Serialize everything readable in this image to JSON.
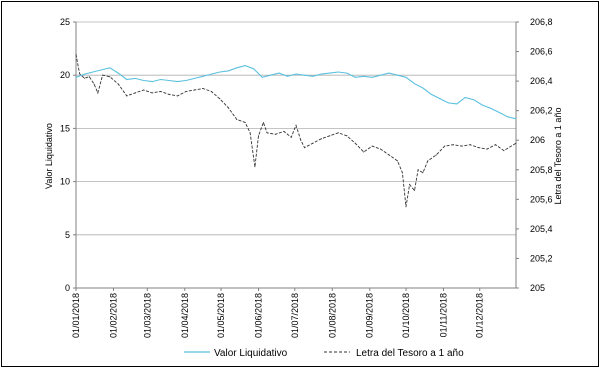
{
  "chart_data": {
    "type": "line",
    "title": "",
    "xlabel": "",
    "ylabel_left": "Valor Liquidativo",
    "ylabel_right": "Letra del Tesoro a 1 año",
    "ylim_left": [
      0,
      25
    ],
    "ylim_right": [
      205,
      206.8
    ],
    "yticks_left": [
      "0",
      "5",
      "10",
      "15",
      "20",
      "25"
    ],
    "yticks_right": [
      "205",
      "205,2",
      "205,4",
      "205,6",
      "205,8",
      "206",
      "206,2",
      "206,4",
      "206,6",
      "206,8"
    ],
    "x_ticks": [
      "01/01/2018",
      "01/02/2018",
      "01/03/2018",
      "01/04/2018",
      "01/05/2018",
      "01/06/2018",
      "01/07/2018",
      "01/08/2018",
      "01/09/2018",
      "01/10/2018",
      "01/11/2018",
      "01/12/2018"
    ],
    "x_range": [
      "2018-01-01",
      "2018-12-31"
    ],
    "grid": "horizontal",
    "legend_position": "bottom",
    "series": [
      {
        "name": "Valor Liquidativo",
        "axis": "left",
        "color": "#5bc0de",
        "style": "solid",
        "points": [
          [
            "2018-01-01",
            19.8
          ],
          [
            "2018-01-08",
            20.1
          ],
          [
            "2018-01-15",
            20.3
          ],
          [
            "2018-01-22",
            20.5
          ],
          [
            "2018-01-29",
            20.7
          ],
          [
            "2018-02-05",
            20.2
          ],
          [
            "2018-02-12",
            19.6
          ],
          [
            "2018-02-19",
            19.7
          ],
          [
            "2018-02-26",
            19.5
          ],
          [
            "2018-03-05",
            19.4
          ],
          [
            "2018-03-12",
            19.6
          ],
          [
            "2018-03-19",
            19.5
          ],
          [
            "2018-03-26",
            19.4
          ],
          [
            "2018-04-02",
            19.5
          ],
          [
            "2018-04-09",
            19.7
          ],
          [
            "2018-04-16",
            19.9
          ],
          [
            "2018-04-23",
            20.1
          ],
          [
            "2018-04-30",
            20.3
          ],
          [
            "2018-05-07",
            20.4
          ],
          [
            "2018-05-14",
            20.7
          ],
          [
            "2018-05-21",
            20.9
          ],
          [
            "2018-05-28",
            20.6
          ],
          [
            "2018-06-04",
            19.8
          ],
          [
            "2018-06-11",
            20.0
          ],
          [
            "2018-06-18",
            20.2
          ],
          [
            "2018-06-25",
            19.9
          ],
          [
            "2018-07-02",
            20.1
          ],
          [
            "2018-07-09",
            20.0
          ],
          [
            "2018-07-16",
            19.9
          ],
          [
            "2018-07-23",
            20.1
          ],
          [
            "2018-07-30",
            20.2
          ],
          [
            "2018-08-06",
            20.3
          ],
          [
            "2018-08-13",
            20.2
          ],
          [
            "2018-08-20",
            19.8
          ],
          [
            "2018-08-27",
            19.9
          ],
          [
            "2018-09-03",
            19.8
          ],
          [
            "2018-09-10",
            20.0
          ],
          [
            "2018-09-17",
            20.2
          ],
          [
            "2018-09-24",
            20.0
          ],
          [
            "2018-10-01",
            19.8
          ],
          [
            "2018-10-08",
            19.2
          ],
          [
            "2018-10-15",
            18.8
          ],
          [
            "2018-10-22",
            18.2
          ],
          [
            "2018-10-29",
            17.8
          ],
          [
            "2018-11-05",
            17.4
          ],
          [
            "2018-11-12",
            17.3
          ],
          [
            "2018-11-19",
            17.9
          ],
          [
            "2018-11-26",
            17.7
          ],
          [
            "2018-12-03",
            17.2
          ],
          [
            "2018-12-10",
            16.9
          ],
          [
            "2018-12-17",
            16.5
          ],
          [
            "2018-12-24",
            16.1
          ],
          [
            "2018-12-31",
            15.9
          ]
        ]
      },
      {
        "name": "Letra del Tesoro a 1 año",
        "axis": "right",
        "color": "#333333",
        "style": "dashed",
        "points": [
          [
            "2018-01-01",
            206.58
          ],
          [
            "2018-01-04",
            206.45
          ],
          [
            "2018-01-08",
            206.42
          ],
          [
            "2018-01-12",
            206.43
          ],
          [
            "2018-01-16",
            206.38
          ],
          [
            "2018-01-19",
            206.32
          ],
          [
            "2018-01-23",
            206.44
          ],
          [
            "2018-01-29",
            206.43
          ],
          [
            "2018-02-05",
            206.38
          ],
          [
            "2018-02-12",
            206.3
          ],
          [
            "2018-02-19",
            206.32
          ],
          [
            "2018-02-26",
            206.34
          ],
          [
            "2018-03-05",
            206.32
          ],
          [
            "2018-03-12",
            206.33
          ],
          [
            "2018-03-19",
            206.31
          ],
          [
            "2018-03-26",
            206.3
          ],
          [
            "2018-04-02",
            206.33
          ],
          [
            "2018-04-09",
            206.34
          ],
          [
            "2018-04-16",
            206.35
          ],
          [
            "2018-04-23",
            206.33
          ],
          [
            "2018-04-30",
            206.28
          ],
          [
            "2018-05-07",
            206.22
          ],
          [
            "2018-05-14",
            206.14
          ],
          [
            "2018-05-21",
            206.12
          ],
          [
            "2018-05-25",
            206.05
          ],
          [
            "2018-05-29",
            205.82
          ],
          [
            "2018-06-01",
            206.03
          ],
          [
            "2018-06-05",
            206.12
          ],
          [
            "2018-06-08",
            206.05
          ],
          [
            "2018-06-15",
            206.04
          ],
          [
            "2018-06-22",
            206.06
          ],
          [
            "2018-06-28",
            206.02
          ],
          [
            "2018-07-02",
            206.1
          ],
          [
            "2018-07-06",
            206.0
          ],
          [
            "2018-07-09",
            205.95
          ],
          [
            "2018-07-16",
            205.98
          ],
          [
            "2018-07-23",
            206.01
          ],
          [
            "2018-07-30",
            206.03
          ],
          [
            "2018-08-06",
            206.05
          ],
          [
            "2018-08-13",
            206.03
          ],
          [
            "2018-08-20",
            205.98
          ],
          [
            "2018-08-27",
            205.92
          ],
          [
            "2018-09-03",
            205.96
          ],
          [
            "2018-09-10",
            205.94
          ],
          [
            "2018-09-17",
            205.9
          ],
          [
            "2018-09-24",
            205.86
          ],
          [
            "2018-09-28",
            205.78
          ],
          [
            "2018-10-01",
            205.55
          ],
          [
            "2018-10-04",
            205.7
          ],
          [
            "2018-10-08",
            205.66
          ],
          [
            "2018-10-11",
            205.8
          ],
          [
            "2018-10-15",
            205.78
          ],
          [
            "2018-10-19",
            205.86
          ],
          [
            "2018-10-26",
            205.9
          ],
          [
            "2018-11-02",
            205.96
          ],
          [
            "2018-11-09",
            205.97
          ],
          [
            "2018-11-16",
            205.96
          ],
          [
            "2018-11-23",
            205.97
          ],
          [
            "2018-11-30",
            205.95
          ],
          [
            "2018-12-07",
            205.94
          ],
          [
            "2018-12-14",
            205.97
          ],
          [
            "2018-12-21",
            205.93
          ],
          [
            "2018-12-31",
            205.98
          ]
        ]
      }
    ]
  }
}
